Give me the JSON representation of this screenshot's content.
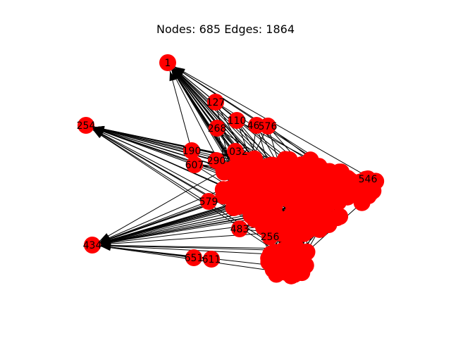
{
  "figure": {
    "title": "Nodes: 685 Edges: 1864",
    "node_color": "#ff0000",
    "edge_color": "#000000"
  },
  "nodes": [
    {
      "id": "1",
      "label": "1"
    },
    {
      "id": "127",
      "label": "127"
    },
    {
      "id": "254",
      "label": "254"
    },
    {
      "id": "110",
      "label": "110"
    },
    {
      "id": "268",
      "label": "268"
    },
    {
      "id": "467",
      "label": "467"
    },
    {
      "id": "576",
      "label": "576"
    },
    {
      "id": "190",
      "label": "190"
    },
    {
      "id": "1032",
      "label": "1032"
    },
    {
      "id": "607",
      "label": "607"
    },
    {
      "id": "290",
      "label": "290"
    },
    {
      "id": "579",
      "label": "579"
    },
    {
      "id": "434",
      "label": "434"
    },
    {
      "id": "651",
      "label": "651"
    },
    {
      "id": "611",
      "label": "611"
    },
    {
      "id": "256",
      "label": "256"
    },
    {
      "id": "483",
      "label": "483"
    },
    {
      "id": "546",
      "label": "546"
    }
  ]
}
